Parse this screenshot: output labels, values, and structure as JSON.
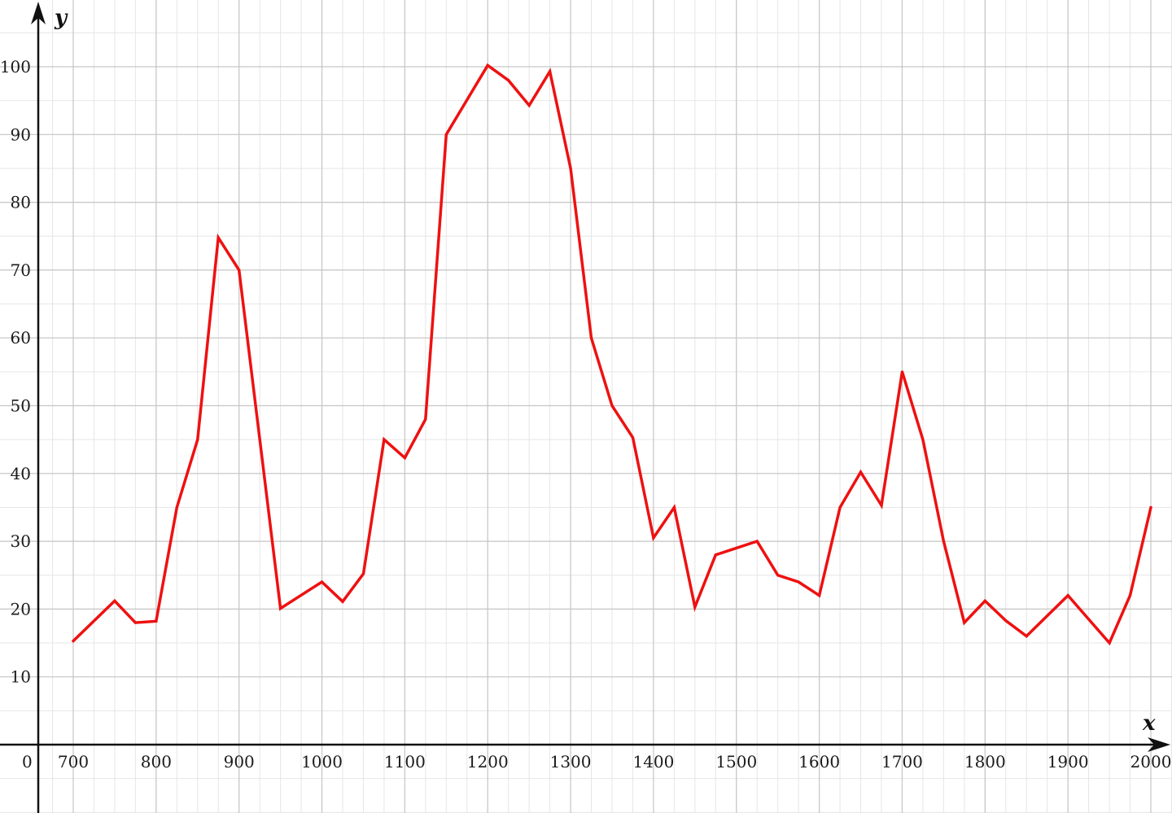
{
  "chart_data": {
    "type": "line",
    "xlabel": "x",
    "ylabel": "y",
    "origin_label": "0",
    "xlim": [
      660,
      2030
    ],
    "ylim": [
      -10,
      108
    ],
    "x_ticks": [
      700,
      800,
      900,
      1000,
      1100,
      1200,
      1300,
      1400,
      1500,
      1600,
      1700,
      1800,
      1900,
      2000
    ],
    "y_ticks": [
      10,
      20,
      30,
      40,
      50,
      60,
      70,
      80,
      90,
      100
    ],
    "minor_x_step": 25,
    "minor_y_step": 5,
    "grid": true,
    "series": [
      {
        "color": "#ee1111",
        "x": [
          700,
          750,
          775,
          800,
          825,
          850,
          875,
          900,
          925,
          950,
          1000,
          1025,
          1050,
          1075,
          1100,
          1125,
          1150,
          1200,
          1225,
          1250,
          1275,
          1300,
          1325,
          1350,
          1375,
          1400,
          1425,
          1450,
          1475,
          1525,
          1550,
          1575,
          1600,
          1625,
          1650,
          1675,
          1700,
          1725,
          1750,
          1775,
          1800,
          1825,
          1850,
          1900,
          1925,
          1950,
          1975,
          2000
        ],
        "y": [
          15.3,
          21.2,
          18.0,
          18.2,
          35.0,
          45.0,
          74.8,
          70.0,
          45.0,
          20.1,
          24.0,
          21.1,
          25.2,
          45.0,
          42.3,
          48.0,
          90.0,
          100.2,
          98.0,
          94.3,
          99.3,
          85.0,
          60.0,
          50.0,
          45.3,
          30.5,
          35.0,
          20.3,
          28.0,
          30.0,
          25.0,
          24.0,
          22.0,
          35.0,
          40.2,
          35.3,
          55.0,
          45.0,
          30.0,
          18.0,
          21.2,
          18.3,
          16.0,
          22.0,
          18.5,
          15.0,
          22.0,
          35.0
        ]
      }
    ]
  }
}
